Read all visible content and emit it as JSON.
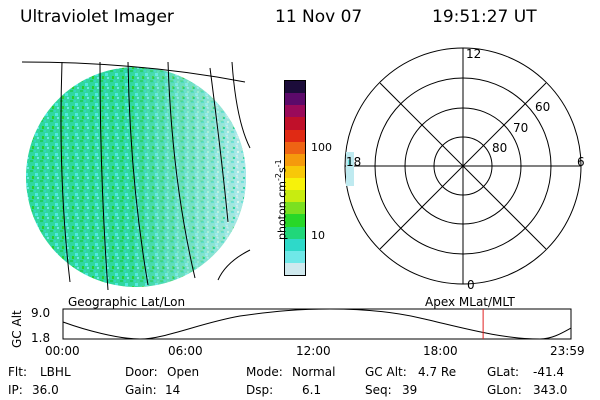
{
  "header": {
    "instrument": "Ultraviolet Imager",
    "date": "11 Nov 07",
    "time": "19:51:27 UT"
  },
  "colorbar": {
    "unit_label": "photon cm-2s-1",
    "ticks": [
      "100",
      "10"
    ],
    "scale": "log",
    "colors": [
      "#cfe9ee",
      "#6fe8e8",
      "#2ed9c9",
      "#20d77a",
      "#28d728",
      "#7be020",
      "#c8ec10",
      "#f7f20a",
      "#f8c808",
      "#f59a0c",
      "#ee6414",
      "#e02a14",
      "#c0102a",
      "#9a0a5a",
      "#5c0a6a",
      "#1c0c3a"
    ]
  },
  "polar_plot": {
    "mlt_labels": [
      "12",
      "18",
      "6",
      "0"
    ],
    "lat_labels": [
      "60",
      "70",
      "80"
    ]
  },
  "timeline": {
    "left_label": "Geographic Lat/Lon",
    "right_label": "Apex MLat/MLT",
    "axis_title": "GC Alt",
    "y_max": "9.0",
    "y_min": "1.8",
    "time_ticks": [
      "00:00",
      "06:00",
      "12:00",
      "18:00",
      "23:59"
    ],
    "current_time_fraction": 0.827,
    "marker_color": "#e02020"
  },
  "info": {
    "filter_label": "Flt:",
    "filter_value": "LBHL",
    "door_label": "Door:",
    "door_value": "Open",
    "mode_label": "Mode:",
    "mode_value": "Normal",
    "gcalt_label": "GC Alt:",
    "gcalt_value": "4.7 Re",
    "glat_label": "GLat:",
    "glat_value": "-41.4",
    "ip_label": "IP:",
    "ip_value": "36.0",
    "gain_label": "Gain:",
    "gain_value": "14",
    "dsp_label": "Dsp:",
    "dsp_value": "6.1",
    "seq_label": "Seq:",
    "seq_value": "39",
    "glon_label": "GLon:",
    "glon_value": "343.0"
  }
}
